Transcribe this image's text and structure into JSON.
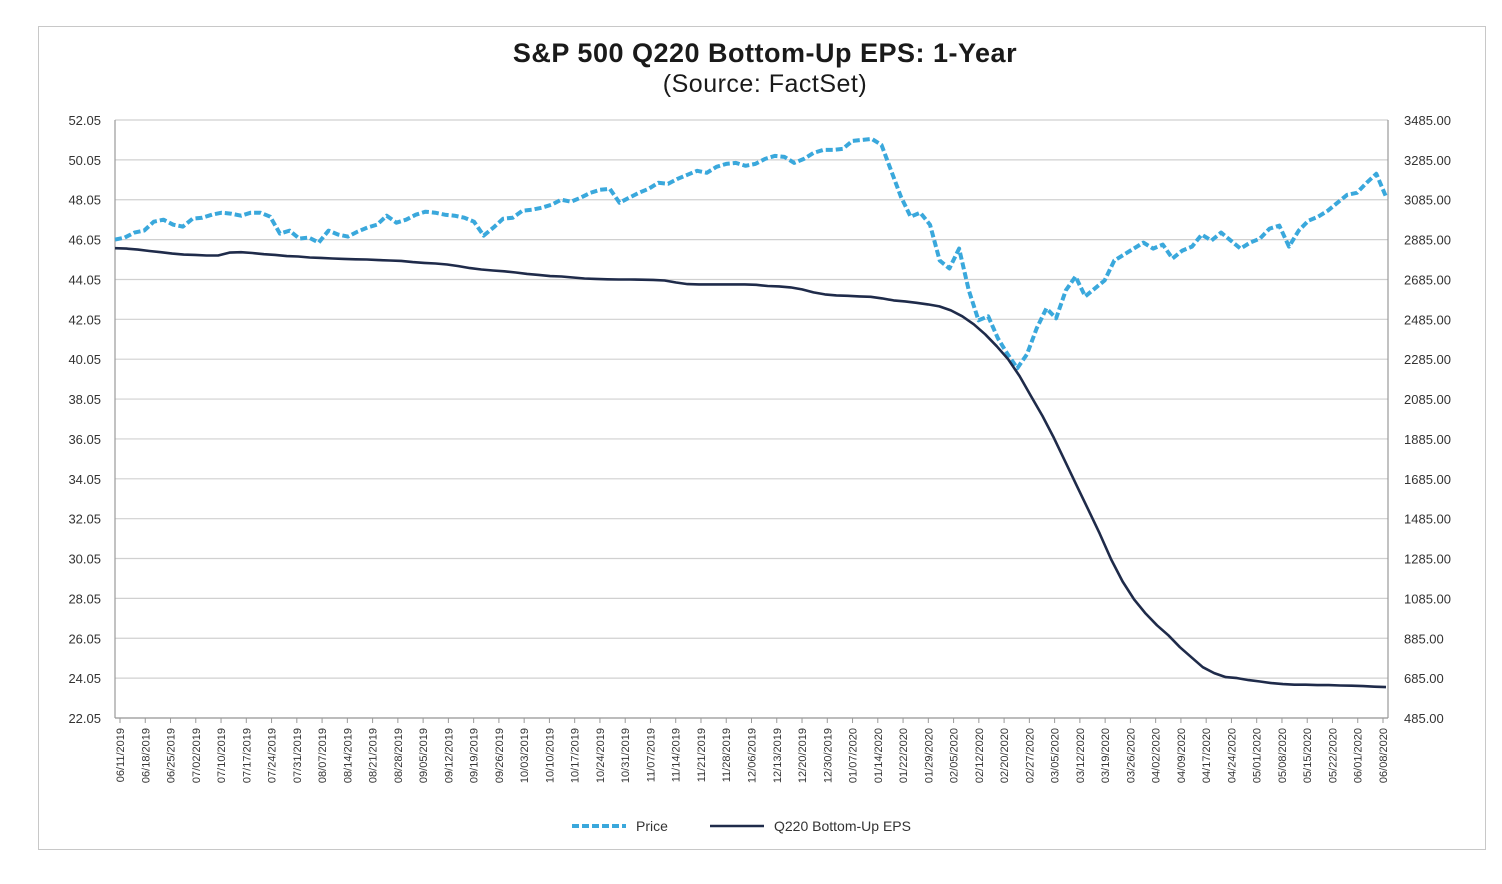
{
  "chart_data": {
    "type": "line",
    "title": "S&P 500 Q220 Bottom-Up EPS: 1-Year",
    "subtitle": "(Source: FactSet)",
    "grid": true,
    "legend_position": "bottom",
    "y_left": {
      "min": 22.05,
      "max": 52.05,
      "ticks": [
        "52.05",
        "50.05",
        "48.05",
        "46.05",
        "44.05",
        "42.05",
        "40.05",
        "38.05",
        "36.05",
        "34.05",
        "32.05",
        "30.05",
        "28.05",
        "26.05",
        "24.05",
        "22.05"
      ]
    },
    "y_right": {
      "min": 485.0,
      "max": 3485.0,
      "ticks": [
        "3485.00",
        "3285.00",
        "3085.00",
        "2885.00",
        "2685.00",
        "2485.00",
        "2285.00",
        "2085.00",
        "1885.00",
        "1685.00",
        "1485.00",
        "1285.00",
        "1085.00",
        "885.00",
        "685.00",
        "485.00"
      ]
    },
    "x_labels": [
      "06/11/2019",
      "06/18/2019",
      "06/25/2019",
      "07/02/2019",
      "07/10/2019",
      "07/17/2019",
      "07/24/2019",
      "07/31/2019",
      "08/07/2019",
      "08/14/2019",
      "08/21/2019",
      "08/28/2019",
      "09/05/2019",
      "09/12/2019",
      "09/19/2019",
      "09/26/2019",
      "10/03/2019",
      "10/10/2019",
      "10/17/2019",
      "10/24/2019",
      "10/31/2019",
      "11/07/2019",
      "11/14/2019",
      "11/21/2019",
      "11/28/2019",
      "12/06/2019",
      "12/13/2019",
      "12/20/2019",
      "12/30/2019",
      "01/07/2020",
      "01/14/2020",
      "01/22/2020",
      "01/29/2020",
      "02/05/2020",
      "02/12/2020",
      "02/20/2020",
      "02/27/2020",
      "03/05/2020",
      "03/12/2020",
      "03/19/2020",
      "03/26/2020",
      "04/02/2020",
      "04/09/2020",
      "04/17/2020",
      "04/24/2020",
      "05/01/2020",
      "05/08/2020",
      "05/15/2020",
      "05/22/2020",
      "06/01/2020",
      "06/08/2020"
    ],
    "series": [
      {
        "name": "Price",
        "axis": "right",
        "style": "dashed",
        "color": "#3aa8dc",
        "values": [
          2885,
          2895,
          2920,
          2930,
          2975,
          2985,
          2960,
          2950,
          2990,
          2995,
          3010,
          3020,
          3015,
          3005,
          3020,
          3020,
          3000,
          2915,
          2930,
          2890,
          2895,
          2870,
          2930,
          2910,
          2900,
          2925,
          2945,
          2960,
          3005,
          2970,
          2985,
          3010,
          3025,
          3020,
          3010,
          3005,
          2995,
          2975,
          2905,
          2945,
          2990,
          2995,
          3030,
          3035,
          3045,
          3060,
          3085,
          3075,
          3095,
          3120,
          3135,
          3140,
          3070,
          3095,
          3120,
          3140,
          3170,
          3165,
          3190,
          3210,
          3230,
          3220,
          3250,
          3265,
          3270,
          3255,
          3265,
          3290,
          3305,
          3300,
          3270,
          3290,
          3320,
          3335,
          3335,
          3340,
          3380,
          3385,
          3390,
          3360,
          3230,
          3100,
          3000,
          3020,
          2960,
          2780,
          2740,
          2840,
          2630,
          2480,
          2500,
          2390,
          2310,
          2240,
          2310,
          2440,
          2540,
          2490,
          2630,
          2700,
          2600,
          2640,
          2680,
          2780,
          2810,
          2840,
          2870,
          2840,
          2860,
          2790,
          2830,
          2850,
          2910,
          2880,
          2920,
          2880,
          2840,
          2870,
          2890,
          2940,
          2955,
          2850,
          2930,
          2980,
          3000,
          3030,
          3070,
          3110,
          3120,
          3170,
          3215,
          3100
        ]
      },
      {
        "name": "Q220 Bottom-Up EPS",
        "axis": "left",
        "style": "solid",
        "color": "#1f2b4a",
        "values": [
          45.62,
          45.6,
          45.55,
          45.48,
          45.42,
          45.35,
          45.3,
          45.28,
          45.25,
          45.25,
          45.4,
          45.42,
          45.38,
          45.32,
          45.28,
          45.22,
          45.2,
          45.15,
          45.13,
          45.1,
          45.08,
          45.06,
          45.05,
          45.02,
          45.0,
          44.98,
          44.92,
          44.88,
          44.85,
          44.8,
          44.72,
          44.62,
          44.55,
          44.5,
          44.46,
          44.4,
          44.33,
          44.28,
          44.22,
          44.2,
          44.15,
          44.1,
          44.08,
          44.06,
          44.05,
          44.05,
          44.04,
          44.03,
          44.0,
          43.9,
          43.82,
          43.8,
          43.8,
          43.8,
          43.8,
          43.8,
          43.78,
          43.72,
          43.7,
          43.65,
          43.55,
          43.4,
          43.3,
          43.25,
          43.23,
          43.2,
          43.18,
          43.1,
          43.0,
          42.95,
          42.88,
          42.8,
          42.7,
          42.5,
          42.2,
          41.8,
          41.3,
          40.7,
          40.05,
          39.2,
          38.2,
          37.2,
          36.1,
          34.9,
          33.7,
          32.5,
          31.3,
          30.0,
          28.9,
          28.0,
          27.3,
          26.7,
          26.2,
          25.6,
          25.1,
          24.6,
          24.3,
          24.1,
          24.05,
          23.95,
          23.88,
          23.8,
          23.75,
          23.72,
          23.72,
          23.7,
          23.7,
          23.68,
          23.67,
          23.65,
          23.62,
          23.6
        ]
      }
    ],
    "legend": [
      {
        "label": "Price",
        "style": "dashed",
        "color": "#3aa8dc"
      },
      {
        "label": "Q220 Bottom-Up EPS",
        "style": "solid",
        "color": "#1f2b4a"
      }
    ]
  }
}
